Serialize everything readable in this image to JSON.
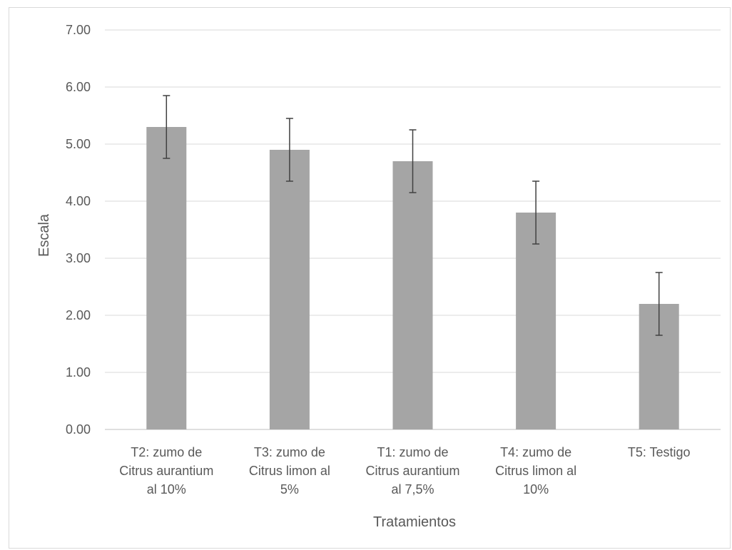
{
  "chart_data": {
    "type": "bar",
    "title": "",
    "xlabel": "Tratamientos",
    "ylabel": "Escala",
    "ylim": [
      0,
      7
    ],
    "yticks": [
      "0.00",
      "1.00",
      "2.00",
      "3.00",
      "4.00",
      "5.00",
      "6.00",
      "7.00"
    ],
    "grid": true,
    "legend": "none",
    "bar_color": "#a5a5a5",
    "error_bar_color": "#404040",
    "categories": [
      [
        "T2: zumo de",
        "Citrus aurantium",
        "al 10%"
      ],
      [
        "T3: zumo de",
        "Citrus limon al",
        "5%"
      ],
      [
        "T1: zumo de",
        "Citrus aurantium",
        "al 7,5%"
      ],
      [
        "T4: zumo de",
        "Citrus limon al",
        "10%"
      ],
      [
        "T5: Testigo"
      ]
    ],
    "values": [
      5.3,
      4.9,
      4.7,
      3.8,
      2.2
    ],
    "errors": [
      0.55,
      0.55,
      0.55,
      0.55,
      0.55
    ]
  }
}
